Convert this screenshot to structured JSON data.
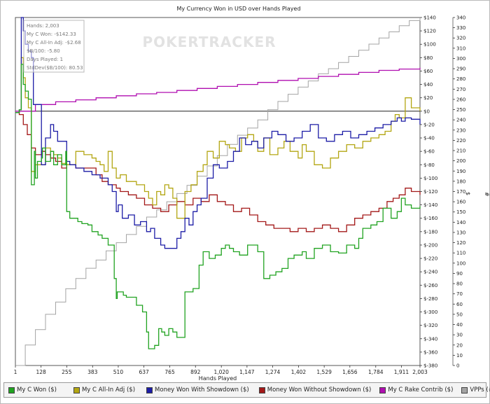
{
  "chart_data": {
    "type": "line",
    "title": "My Currency Won in USD over Hands Played",
    "xlabel": "Hands Played",
    "ylabel_left": "",
    "ylabel_right1": "$",
    "ylabel_right2": "#",
    "watermark": "POKERTRACKER",
    "xlim": [
      1,
      2003
    ],
    "ylim": [
      -380,
      140
    ],
    "y2lim": [
      0,
      340
    ],
    "x_ticks": [
      "1",
      "128",
      "255",
      "383",
      "510",
      "637",
      "765",
      "892",
      "1,020",
      "1,147",
      "1,274",
      "1,402",
      "1,529",
      "1,656",
      "1,784",
      "1,911",
      "2,003"
    ],
    "x_tick_values": [
      1,
      128,
      255,
      383,
      510,
      637,
      765,
      892,
      1020,
      1147,
      1274,
      1402,
      1529,
      1656,
      1784,
      1911,
      2003
    ],
    "y_ticks": [
      "$140",
      "$120",
      "$100",
      "$80",
      "$60",
      "$40",
      "$20",
      "$0",
      "$-20",
      "$-40",
      "$-60",
      "$-80",
      "$-100",
      "$-120",
      "$-140",
      "$-160",
      "$-180",
      "$-200",
      "$-220",
      "$-240",
      "$-260",
      "$-280",
      "$-300",
      "$-320",
      "$-340",
      "$-360",
      "$-380"
    ],
    "y_tick_values": [
      140,
      120,
      100,
      80,
      60,
      40,
      20,
      0,
      -20,
      -40,
      -60,
      -80,
      -100,
      -120,
      -140,
      -160,
      -180,
      -200,
      -220,
      -240,
      -260,
      -280,
      -300,
      -320,
      -340,
      -360,
      -380
    ],
    "y2_ticks": [
      "340",
      "330",
      "320",
      "310",
      "300",
      "290",
      "280",
      "270",
      "260",
      "250",
      "240",
      "230",
      "220",
      "210",
      "200",
      "190",
      "180",
      "170",
      "160",
      "150",
      "140",
      "130",
      "120",
      "110",
      "100",
      "90",
      "80",
      "70",
      "60",
      "50",
      "40",
      "30",
      "20",
      "10",
      "0"
    ],
    "y2_tick_values": [
      340,
      330,
      320,
      310,
      300,
      290,
      280,
      270,
      260,
      250,
      240,
      230,
      220,
      210,
      200,
      190,
      180,
      170,
      160,
      150,
      140,
      130,
      120,
      110,
      100,
      90,
      80,
      70,
      60,
      50,
      40,
      30,
      20,
      10,
      0
    ],
    "grid": false,
    "legend_position": "bottom",
    "stats": [
      "Hands: 2,003",
      "My C Won: -$142.33",
      "My C All-In Adj: -$2.68",
      "$B/100: -5.80",
      "Days Played: 1",
      "StdDev($B/100): 80.53"
    ],
    "series": [
      {
        "name": "My C Won ($)",
        "color": "#21a321",
        "axis": "left",
        "x": [
          1,
          20,
          30,
          40,
          50,
          65,
          80,
          95,
          100,
          110,
          130,
          135,
          150,
          175,
          190,
          210,
          230,
          250,
          255,
          270,
          290,
          310,
          330,
          360,
          380,
          410,
          430,
          460,
          490,
          500,
          505,
          520,
          535,
          550,
          600,
          630,
          650,
          660,
          690,
          710,
          725,
          740,
          760,
          780,
          800,
          840,
          880,
          910,
          930,
          960,
          990,
          1020,
          1040,
          1060,
          1080,
          1110,
          1150,
          1200,
          1230,
          1260,
          1290,
          1320,
          1350,
          1380,
          1420,
          1440,
          1480,
          1520,
          1560,
          1600,
          1640,
          1680,
          1700,
          1720,
          1760,
          1790,
          1820,
          1860,
          1890,
          1911,
          1930,
          1960,
          2003
        ],
        "y": [
          -2,
          2,
          70,
          40,
          30,
          18,
          -110,
          -60,
          -100,
          -75,
          -70,
          -55,
          -75,
          -60,
          -80,
          -65,
          -80,
          -60,
          -150,
          -160,
          -160,
          -165,
          -168,
          -170,
          -180,
          -185,
          -190,
          -200,
          -250,
          -280,
          -270,
          -270,
          -275,
          -278,
          -290,
          -300,
          -330,
          -355,
          -350,
          -325,
          -330,
          -335,
          -325,
          -330,
          -338,
          -270,
          -265,
          -230,
          -210,
          -220,
          -215,
          -205,
          -200,
          -205,
          -210,
          -215,
          -200,
          -210,
          -250,
          -245,
          -240,
          -235,
          -220,
          -215,
          -210,
          -220,
          -205,
          -200,
          -210,
          -212,
          -200,
          -205,
          -190,
          -175,
          -170,
          -165,
          -145,
          -160,
          -150,
          -130,
          -140,
          -145,
          -142
        ]
      },
      {
        "name": "My C All-In Adj ($)",
        "color": "#b3a612",
        "axis": "left",
        "x": [
          1,
          20,
          30,
          40,
          50,
          65,
          80,
          100,
          130,
          150,
          175,
          190,
          210,
          230,
          255,
          300,
          340,
          380,
          400,
          420,
          440,
          460,
          480,
          500,
          520,
          550,
          600,
          640,
          660,
          680,
          700,
          720,
          740,
          760,
          780,
          800,
          840,
          870,
          900,
          930,
          950,
          980,
          1010,
          1040,
          1060,
          1090,
          1120,
          1150,
          1180,
          1200,
          1230,
          1260,
          1300,
          1330,
          1360,
          1400,
          1420,
          1440,
          1480,
          1520,
          1560,
          1600,
          1640,
          1680,
          1720,
          1760,
          1800,
          1830,
          1860,
          1880,
          1900,
          1930,
          1960,
          2003
        ],
        "y": [
          -2,
          2,
          80,
          50,
          20,
          5,
          -90,
          -80,
          -80,
          -55,
          -60,
          -65,
          -70,
          -78,
          -80,
          -60,
          -65,
          -70,
          -75,
          -80,
          -90,
          -60,
          -85,
          -100,
          -95,
          -105,
          -110,
          -120,
          -130,
          -140,
          -120,
          -125,
          -110,
          -115,
          -130,
          -160,
          -120,
          -110,
          -90,
          -80,
          -60,
          -70,
          -45,
          -50,
          -55,
          -60,
          -40,
          -35,
          -45,
          -60,
          -40,
          -65,
          -55,
          -45,
          -60,
          -70,
          -50,
          -60,
          -80,
          -85,
          -70,
          -60,
          -50,
          -55,
          -45,
          -40,
          -35,
          -30,
          -15,
          -5,
          -10,
          20,
          5,
          0
        ]
      },
      {
        "name": "Money Won With Showdown ($)",
        "color": "#1c1ca6",
        "axis": "left",
        "x": [
          1,
          20,
          30,
          40,
          50,
          65,
          80,
          90,
          130,
          150,
          175,
          190,
          210,
          255,
          270,
          300,
          340,
          380,
          420,
          460,
          480,
          500,
          510,
          530,
          560,
          590,
          620,
          650,
          670,
          690,
          720,
          740,
          760,
          800,
          820,
          840,
          860,
          880,
          900,
          920,
          950,
          980,
          1010,
          1050,
          1080,
          1110,
          1140,
          1170,
          1200,
          1230,
          1270,
          1300,
          1340,
          1380,
          1420,
          1460,
          1500,
          1540,
          1580,
          1620,
          1660,
          1700,
          1740,
          1780,
          1820,
          1860,
          1890,
          1911,
          1930,
          1960,
          2003
        ],
        "y": [
          -2,
          2,
          140,
          120,
          100,
          90,
          80,
          10,
          -80,
          -40,
          -20,
          -30,
          -45,
          -75,
          -80,
          -85,
          -90,
          -95,
          -100,
          -110,
          -120,
          -150,
          -140,
          -160,
          -155,
          -170,
          -165,
          -180,
          -175,
          -190,
          -200,
          -205,
          -205,
          -190,
          -180,
          -160,
          -170,
          -150,
          -140,
          -130,
          -100,
          -80,
          -85,
          -75,
          -60,
          -40,
          -50,
          -45,
          -55,
          -40,
          -30,
          -35,
          -45,
          -40,
          -30,
          -20,
          -40,
          -45,
          -35,
          -30,
          -40,
          -35,
          -30,
          -25,
          -20,
          -15,
          -10,
          -15,
          -10,
          -12,
          -20
        ]
      },
      {
        "name": "Money Won Without Showdown ($)",
        "color": "#a31818",
        "axis": "left",
        "x": [
          1,
          20,
          40,
          60,
          80,
          100,
          130,
          150,
          175,
          200,
          230,
          255,
          300,
          350,
          400,
          430,
          460,
          500,
          520,
          560,
          600,
          640,
          680,
          720,
          760,
          800,
          840,
          880,
          920,
          960,
          1000,
          1040,
          1080,
          1120,
          1160,
          1200,
          1240,
          1280,
          1320,
          1360,
          1400,
          1440,
          1480,
          1520,
          1560,
          1600,
          1640,
          1680,
          1720,
          1760,
          1800,
          1840,
          1870,
          1900,
          1930,
          1960,
          2003
        ],
        "y": [
          -2,
          -5,
          -20,
          -35,
          -55,
          -65,
          -60,
          -65,
          -70,
          -75,
          -85,
          -80,
          -85,
          -85,
          -95,
          -105,
          -110,
          -115,
          -120,
          -125,
          -130,
          -140,
          -145,
          -150,
          -140,
          -135,
          -140,
          -130,
          -135,
          -125,
          -135,
          -140,
          -150,
          -145,
          -155,
          -165,
          -170,
          -175,
          -175,
          -180,
          -175,
          -180,
          -175,
          -170,
          -175,
          -180,
          -170,
          -160,
          -155,
          -150,
          -145,
          -135,
          -130,
          -125,
          -115,
          -120,
          -125
        ]
      },
      {
        "name": "My C Rake Contrib ($)",
        "color": "#b00fb0",
        "axis": "left",
        "x": [
          1,
          100,
          200,
          300,
          400,
          500,
          600,
          700,
          800,
          900,
          1000,
          1100,
          1200,
          1300,
          1400,
          1500,
          1600,
          1700,
          1800,
          1900,
          2003
        ],
        "y": [
          0,
          10,
          14,
          17,
          20,
          23,
          26,
          28,
          31,
          34,
          37,
          40,
          43,
          46,
          49,
          52,
          55,
          58,
          61,
          63,
          65
        ]
      },
      {
        "name": "VPPs (#)",
        "color": "#a4a4a4",
        "axis": "right",
        "x": [
          1,
          50,
          100,
          150,
          200,
          250,
          300,
          350,
          400,
          450,
          500,
          550,
          600,
          650,
          700,
          750,
          800,
          850,
          900,
          950,
          1000,
          1050,
          1100,
          1150,
          1200,
          1250,
          1300,
          1350,
          1400,
          1450,
          1500,
          1550,
          1600,
          1650,
          1700,
          1750,
          1800,
          1850,
          1900,
          1950,
          2003
        ],
        "y": [
          0,
          20,
          35,
          50,
          62,
          75,
          85,
          95,
          103,
          112,
          120,
          128,
          136,
          145,
          152,
          160,
          168,
          176,
          185,
          195,
          205,
          216,
          225,
          232,
          240,
          250,
          258,
          265,
          272,
          278,
          285,
          290,
          296,
          302,
          308,
          314,
          320,
          326,
          332,
          337,
          340
        ]
      }
    ]
  },
  "legend": [
    {
      "label": "My C Won ($)",
      "color": "#21a321"
    },
    {
      "label": "My C All-In Adj ($)",
      "color": "#b3a612"
    },
    {
      "label": "Money Won With Showdown ($)",
      "color": "#1c1ca6"
    },
    {
      "label": "Money Won Without Showdown ($)",
      "color": "#a31818"
    },
    {
      "label": "My C Rake Contrib ($)",
      "color": "#b00fb0"
    },
    {
      "label": "VPPs (#)",
      "color": "#a4a4a4"
    }
  ]
}
